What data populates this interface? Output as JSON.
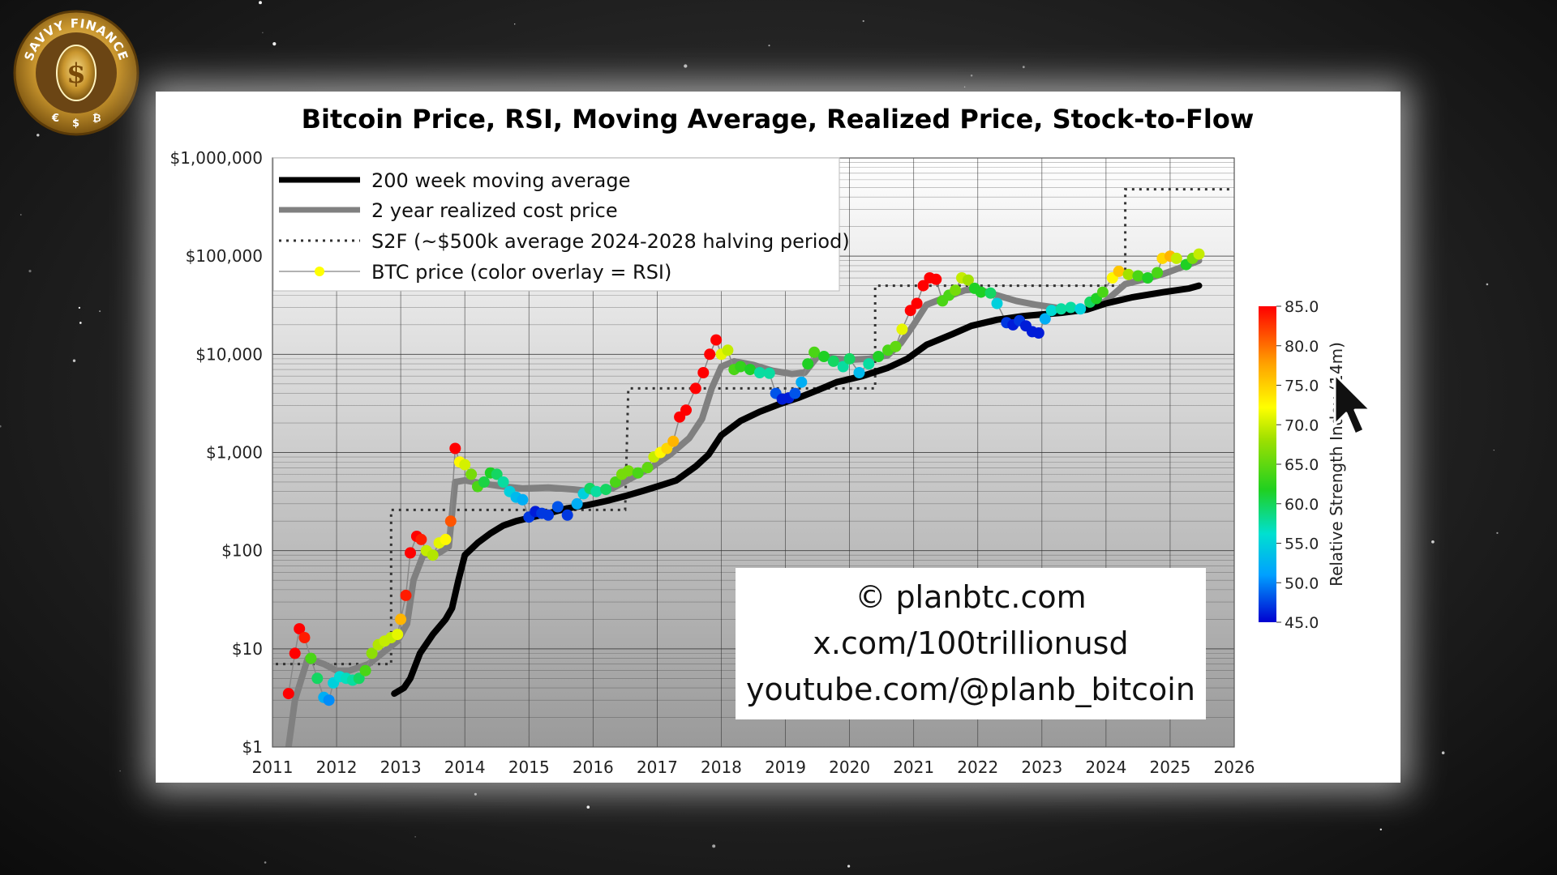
{
  "channel": {
    "logo_text": "SAVVY FINANCE",
    "logo_symbols": [
      "€",
      "$",
      "₿"
    ],
    "logo_center": "$"
  },
  "colors": {
    "ma": "#000000",
    "realized": "#808080",
    "s2f": "#333333",
    "price_line": "#888888",
    "rsi_scale": [
      "#0000d0",
      "#00a0ff",
      "#00e0d0",
      "#20d020",
      "#a0e000",
      "#ffff00",
      "#ffa000",
      "#ff0000"
    ]
  },
  "chart_data": {
    "type": "line",
    "title": "Bitcoin Price, RSI, Moving Average, Realized Price, Stock-to-Flow",
    "xlabel": "",
    "ylabel": "",
    "y_scale": "log",
    "xlim": [
      2011,
      2026
    ],
    "ylim": [
      1,
      1000000
    ],
    "x_ticks": [
      "2011",
      "2012",
      "2013",
      "2014",
      "2015",
      "2016",
      "2017",
      "2018",
      "2019",
      "2020",
      "2021",
      "2022",
      "2023",
      "2024",
      "2025",
      "2026"
    ],
    "y_ticks": [
      {
        "value": 1,
        "label": "$1"
      },
      {
        "value": 10,
        "label": "$10"
      },
      {
        "value": 100,
        "label": "$100"
      },
      {
        "value": 1000,
        "label": "$1,000"
      },
      {
        "value": 10000,
        "label": "$10,000"
      },
      {
        "value": 100000,
        "label": "$100,000"
      },
      {
        "value": 1000000,
        "label": "$1,000,000"
      }
    ],
    "grid": true,
    "legend_position": "top-left",
    "legend": [
      "200 week moving average",
      "2 year realized cost price",
      "S2F (~$500k average 2024-2028 halving period)",
      "BTC price (color overlay = RSI)"
    ],
    "annotation_lines": [
      "© planbtc.com",
      "x.com/100trillionusd",
      "youtube.com/@planb_bitcoin"
    ],
    "colorbar": {
      "label": "Relative Strength Index (14m)",
      "min": 45,
      "max": 85,
      "ticks": [
        "85.0",
        "80.0",
        "75.0",
        "70.0",
        "65.0",
        "60.0",
        "55.0",
        "50.0",
        "45.0"
      ]
    },
    "series": [
      {
        "name": "200 week moving average",
        "points": [
          [
            2012.9,
            3.5
          ],
          [
            2013.05,
            4
          ],
          [
            2013.15,
            5
          ],
          [
            2013.3,
            9
          ],
          [
            2013.5,
            14
          ],
          [
            2013.7,
            20
          ],
          [
            2013.8,
            26
          ],
          [
            2013.9,
            50
          ],
          [
            2014.0,
            90
          ],
          [
            2014.2,
            120
          ],
          [
            2014.4,
            150
          ],
          [
            2014.6,
            180
          ],
          [
            2014.8,
            200
          ],
          [
            2015.0,
            215
          ],
          [
            2015.3,
            240
          ],
          [
            2015.6,
            270
          ],
          [
            2015.9,
            290
          ],
          [
            2016.2,
            320
          ],
          [
            2016.5,
            360
          ],
          [
            2016.8,
            410
          ],
          [
            2017.0,
            450
          ],
          [
            2017.3,
            520
          ],
          [
            2017.6,
            720
          ],
          [
            2017.8,
            950
          ],
          [
            2018.0,
            1500
          ],
          [
            2018.3,
            2100
          ],
          [
            2018.6,
            2600
          ],
          [
            2018.9,
            3100
          ],
          [
            2019.2,
            3600
          ],
          [
            2019.5,
            4300
          ],
          [
            2019.8,
            5200
          ],
          [
            2020.2,
            6000
          ],
          [
            2020.6,
            7300
          ],
          [
            2020.9,
            9000
          ],
          [
            2021.2,
            12500
          ],
          [
            2021.6,
            16000
          ],
          [
            2021.9,
            19500
          ],
          [
            2022.3,
            22500
          ],
          [
            2022.7,
            24500
          ],
          [
            2023.0,
            25500
          ],
          [
            2023.3,
            26500
          ],
          [
            2023.7,
            28500
          ],
          [
            2024.0,
            33000
          ],
          [
            2024.4,
            38000
          ],
          [
            2024.9,
            43000
          ],
          [
            2025.3,
            47000
          ],
          [
            2025.45,
            50000
          ]
        ]
      },
      {
        "name": "2 year realized cost price",
        "points": [
          [
            2011.25,
            1
          ],
          [
            2011.35,
            3
          ],
          [
            2011.55,
            8
          ],
          [
            2011.8,
            7
          ],
          [
            2012.0,
            6
          ],
          [
            2012.2,
            6
          ],
          [
            2012.5,
            7
          ],
          [
            2012.8,
            10
          ],
          [
            2012.95,
            12
          ],
          [
            2013.1,
            18
          ],
          [
            2013.2,
            50
          ],
          [
            2013.35,
            90
          ],
          [
            2013.6,
            95
          ],
          [
            2013.75,
            110
          ],
          [
            2013.85,
            500
          ],
          [
            2014.0,
            520
          ],
          [
            2014.3,
            480
          ],
          [
            2014.6,
            450
          ],
          [
            2014.9,
            430
          ],
          [
            2015.3,
            440
          ],
          [
            2015.7,
            420
          ],
          [
            2016.0,
            400
          ],
          [
            2016.3,
            430
          ],
          [
            2016.6,
            550
          ],
          [
            2016.9,
            700
          ],
          [
            2017.2,
            950
          ],
          [
            2017.5,
            1400
          ],
          [
            2017.7,
            2200
          ],
          [
            2017.85,
            4500
          ],
          [
            2018.0,
            7500
          ],
          [
            2018.2,
            8500
          ],
          [
            2018.5,
            7800
          ],
          [
            2018.8,
            6800
          ],
          [
            2019.1,
            6300
          ],
          [
            2019.3,
            6500
          ],
          [
            2019.5,
            9500
          ],
          [
            2019.8,
            9000
          ],
          [
            2020.0,
            8800
          ],
          [
            2020.3,
            9000
          ],
          [
            2020.6,
            9800
          ],
          [
            2020.8,
            13000
          ],
          [
            2021.0,
            20000
          ],
          [
            2021.2,
            32000
          ],
          [
            2021.5,
            38000
          ],
          [
            2021.8,
            45000
          ],
          [
            2022.0,
            46000
          ],
          [
            2022.3,
            40000
          ],
          [
            2022.6,
            35000
          ],
          [
            2022.9,
            32000
          ],
          [
            2023.2,
            30000
          ],
          [
            2023.5,
            28000
          ],
          [
            2023.8,
            30000
          ],
          [
            2024.0,
            35000
          ],
          [
            2024.3,
            52000
          ],
          [
            2024.6,
            58000
          ],
          [
            2024.9,
            66000
          ],
          [
            2025.2,
            78000
          ],
          [
            2025.45,
            90000
          ]
        ]
      },
      {
        "name": "S2F (~$500k average 2024-2028 halving period)",
        "points": [
          [
            2011.05,
            7
          ],
          [
            2012.85,
            7
          ],
          [
            2012.85,
            260
          ],
          [
            2016.5,
            260
          ],
          [
            2016.55,
            4500
          ],
          [
            2020.4,
            4500
          ],
          [
            2020.4,
            50000
          ],
          [
            2024.3,
            50000
          ],
          [
            2024.3,
            480000
          ],
          [
            2026.0,
            480000
          ]
        ]
      },
      {
        "name": "BTC price (color overlay = RSI)",
        "points": [
          [
            2011.25,
            3.5,
            85
          ],
          [
            2011.35,
            9,
            85
          ],
          [
            2011.42,
            16,
            85
          ],
          [
            2011.5,
            13,
            84
          ],
          [
            2011.6,
            8,
            64
          ],
          [
            2011.7,
            5,
            60
          ],
          [
            2011.8,
            3.2,
            52
          ],
          [
            2011.88,
            3,
            50
          ],
          [
            2011.95,
            4.5,
            55
          ],
          [
            2012.05,
            5.2,
            56
          ],
          [
            2012.15,
            5,
            57
          ],
          [
            2012.25,
            4.8,
            58
          ],
          [
            2012.35,
            5,
            60
          ],
          [
            2012.45,
            6,
            64
          ],
          [
            2012.55,
            9,
            67
          ],
          [
            2012.65,
            11,
            69
          ],
          [
            2012.75,
            12,
            70
          ],
          [
            2012.85,
            13,
            70
          ],
          [
            2012.95,
            14,
            72
          ],
          [
            2013.0,
            20,
            78
          ],
          [
            2013.08,
            35,
            84
          ],
          [
            2013.15,
            95,
            85
          ],
          [
            2013.25,
            140,
            85
          ],
          [
            2013.32,
            130,
            84
          ],
          [
            2013.4,
            100,
            70
          ],
          [
            2013.5,
            90,
            69
          ],
          [
            2013.6,
            120,
            72
          ],
          [
            2013.7,
            130,
            74
          ],
          [
            2013.78,
            200,
            82
          ],
          [
            2013.85,
            1100,
            85
          ],
          [
            2013.92,
            800,
            74
          ],
          [
            2014.0,
            750,
            71
          ],
          [
            2014.1,
            600,
            66
          ],
          [
            2014.2,
            450,
            64
          ],
          [
            2014.3,
            500,
            61
          ],
          [
            2014.4,
            620,
            62
          ],
          [
            2014.5,
            600,
            60
          ],
          [
            2014.6,
            500,
            58
          ],
          [
            2014.7,
            400,
            55
          ],
          [
            2014.8,
            350,
            53
          ],
          [
            2014.9,
            330,
            52
          ],
          [
            2015.0,
            220,
            47
          ],
          [
            2015.1,
            250,
            46
          ],
          [
            2015.2,
            240,
            47
          ],
          [
            2015.3,
            230,
            47
          ],
          [
            2015.45,
            280,
            48
          ],
          [
            2015.6,
            230,
            47
          ],
          [
            2015.75,
            300,
            52
          ],
          [
            2015.85,
            380,
            55
          ],
          [
            2015.95,
            430,
            60
          ],
          [
            2016.05,
            400,
            58
          ],
          [
            2016.2,
            420,
            60
          ],
          [
            2016.35,
            500,
            64
          ],
          [
            2016.45,
            600,
            66
          ],
          [
            2016.55,
            650,
            66
          ],
          [
            2016.7,
            620,
            64
          ],
          [
            2016.85,
            700,
            65
          ],
          [
            2016.95,
            900,
            70
          ],
          [
            2017.05,
            1000,
            74
          ],
          [
            2017.15,
            1100,
            76
          ],
          [
            2017.25,
            1300,
            78
          ],
          [
            2017.35,
            2300,
            85
          ],
          [
            2017.45,
            2700,
            85
          ],
          [
            2017.6,
            4500,
            85
          ],
          [
            2017.72,
            6500,
            85
          ],
          [
            2017.82,
            10000,
            85
          ],
          [
            2017.92,
            14000,
            85
          ],
          [
            2018.0,
            10000,
            72
          ],
          [
            2018.1,
            11000,
            70
          ],
          [
            2018.2,
            7000,
            64
          ],
          [
            2018.3,
            7500,
            63
          ],
          [
            2018.45,
            7000,
            62
          ],
          [
            2018.6,
            6500,
            58
          ],
          [
            2018.75,
            6400,
            58
          ],
          [
            2018.85,
            4000,
            48
          ],
          [
            2018.95,
            3500,
            46
          ],
          [
            2019.05,
            3600,
            46
          ],
          [
            2019.15,
            4000,
            48
          ],
          [
            2019.25,
            5200,
            52
          ],
          [
            2019.35,
            8000,
            62
          ],
          [
            2019.45,
            10500,
            64
          ],
          [
            2019.6,
            9500,
            62
          ],
          [
            2019.75,
            8500,
            60
          ],
          [
            2019.9,
            7500,
            58
          ],
          [
            2020.0,
            9000,
            60
          ],
          [
            2020.15,
            6500,
            53
          ],
          [
            2020.3,
            8000,
            58
          ],
          [
            2020.45,
            9500,
            62
          ],
          [
            2020.6,
            11000,
            64
          ],
          [
            2020.72,
            12000,
            65
          ],
          [
            2020.82,
            18000,
            72
          ],
          [
            2020.95,
            28000,
            85
          ],
          [
            2021.05,
            33000,
            85
          ],
          [
            2021.15,
            50000,
            85
          ],
          [
            2021.25,
            60000,
            85
          ],
          [
            2021.35,
            58000,
            85
          ],
          [
            2021.45,
            35000,
            64
          ],
          [
            2021.55,
            40000,
            64
          ],
          [
            2021.65,
            45000,
            66
          ],
          [
            2021.75,
            60000,
            70
          ],
          [
            2021.85,
            57000,
            68
          ],
          [
            2021.95,
            47000,
            62
          ],
          [
            2022.05,
            43000,
            62
          ],
          [
            2022.2,
            42000,
            60
          ],
          [
            2022.3,
            33000,
            55
          ],
          [
            2022.45,
            21000,
            47
          ],
          [
            2022.55,
            20000,
            46
          ],
          [
            2022.65,
            22000,
            47
          ],
          [
            2022.75,
            19500,
            46
          ],
          [
            2022.85,
            17000,
            46
          ],
          [
            2022.95,
            16500,
            46
          ],
          [
            2023.05,
            23000,
            52
          ],
          [
            2023.15,
            28000,
            56
          ],
          [
            2023.3,
            29000,
            58
          ],
          [
            2023.45,
            30000,
            58
          ],
          [
            2023.6,
            29000,
            55
          ],
          [
            2023.75,
            34000,
            60
          ],
          [
            2023.85,
            37000,
            62
          ],
          [
            2023.95,
            43000,
            64
          ],
          [
            2024.1,
            60000,
            74
          ],
          [
            2024.2,
            70000,
            77
          ],
          [
            2024.35,
            65000,
            68
          ],
          [
            2024.5,
            63000,
            64
          ],
          [
            2024.65,
            60000,
            62
          ],
          [
            2024.8,
            68000,
            64
          ],
          [
            2024.88,
            95000,
            76
          ],
          [
            2025.0,
            100000,
            78
          ],
          [
            2025.1,
            95000,
            70
          ],
          [
            2025.25,
            82000,
            62
          ],
          [
            2025.35,
            95000,
            66
          ],
          [
            2025.45,
            105000,
            70
          ]
        ]
      }
    ]
  }
}
